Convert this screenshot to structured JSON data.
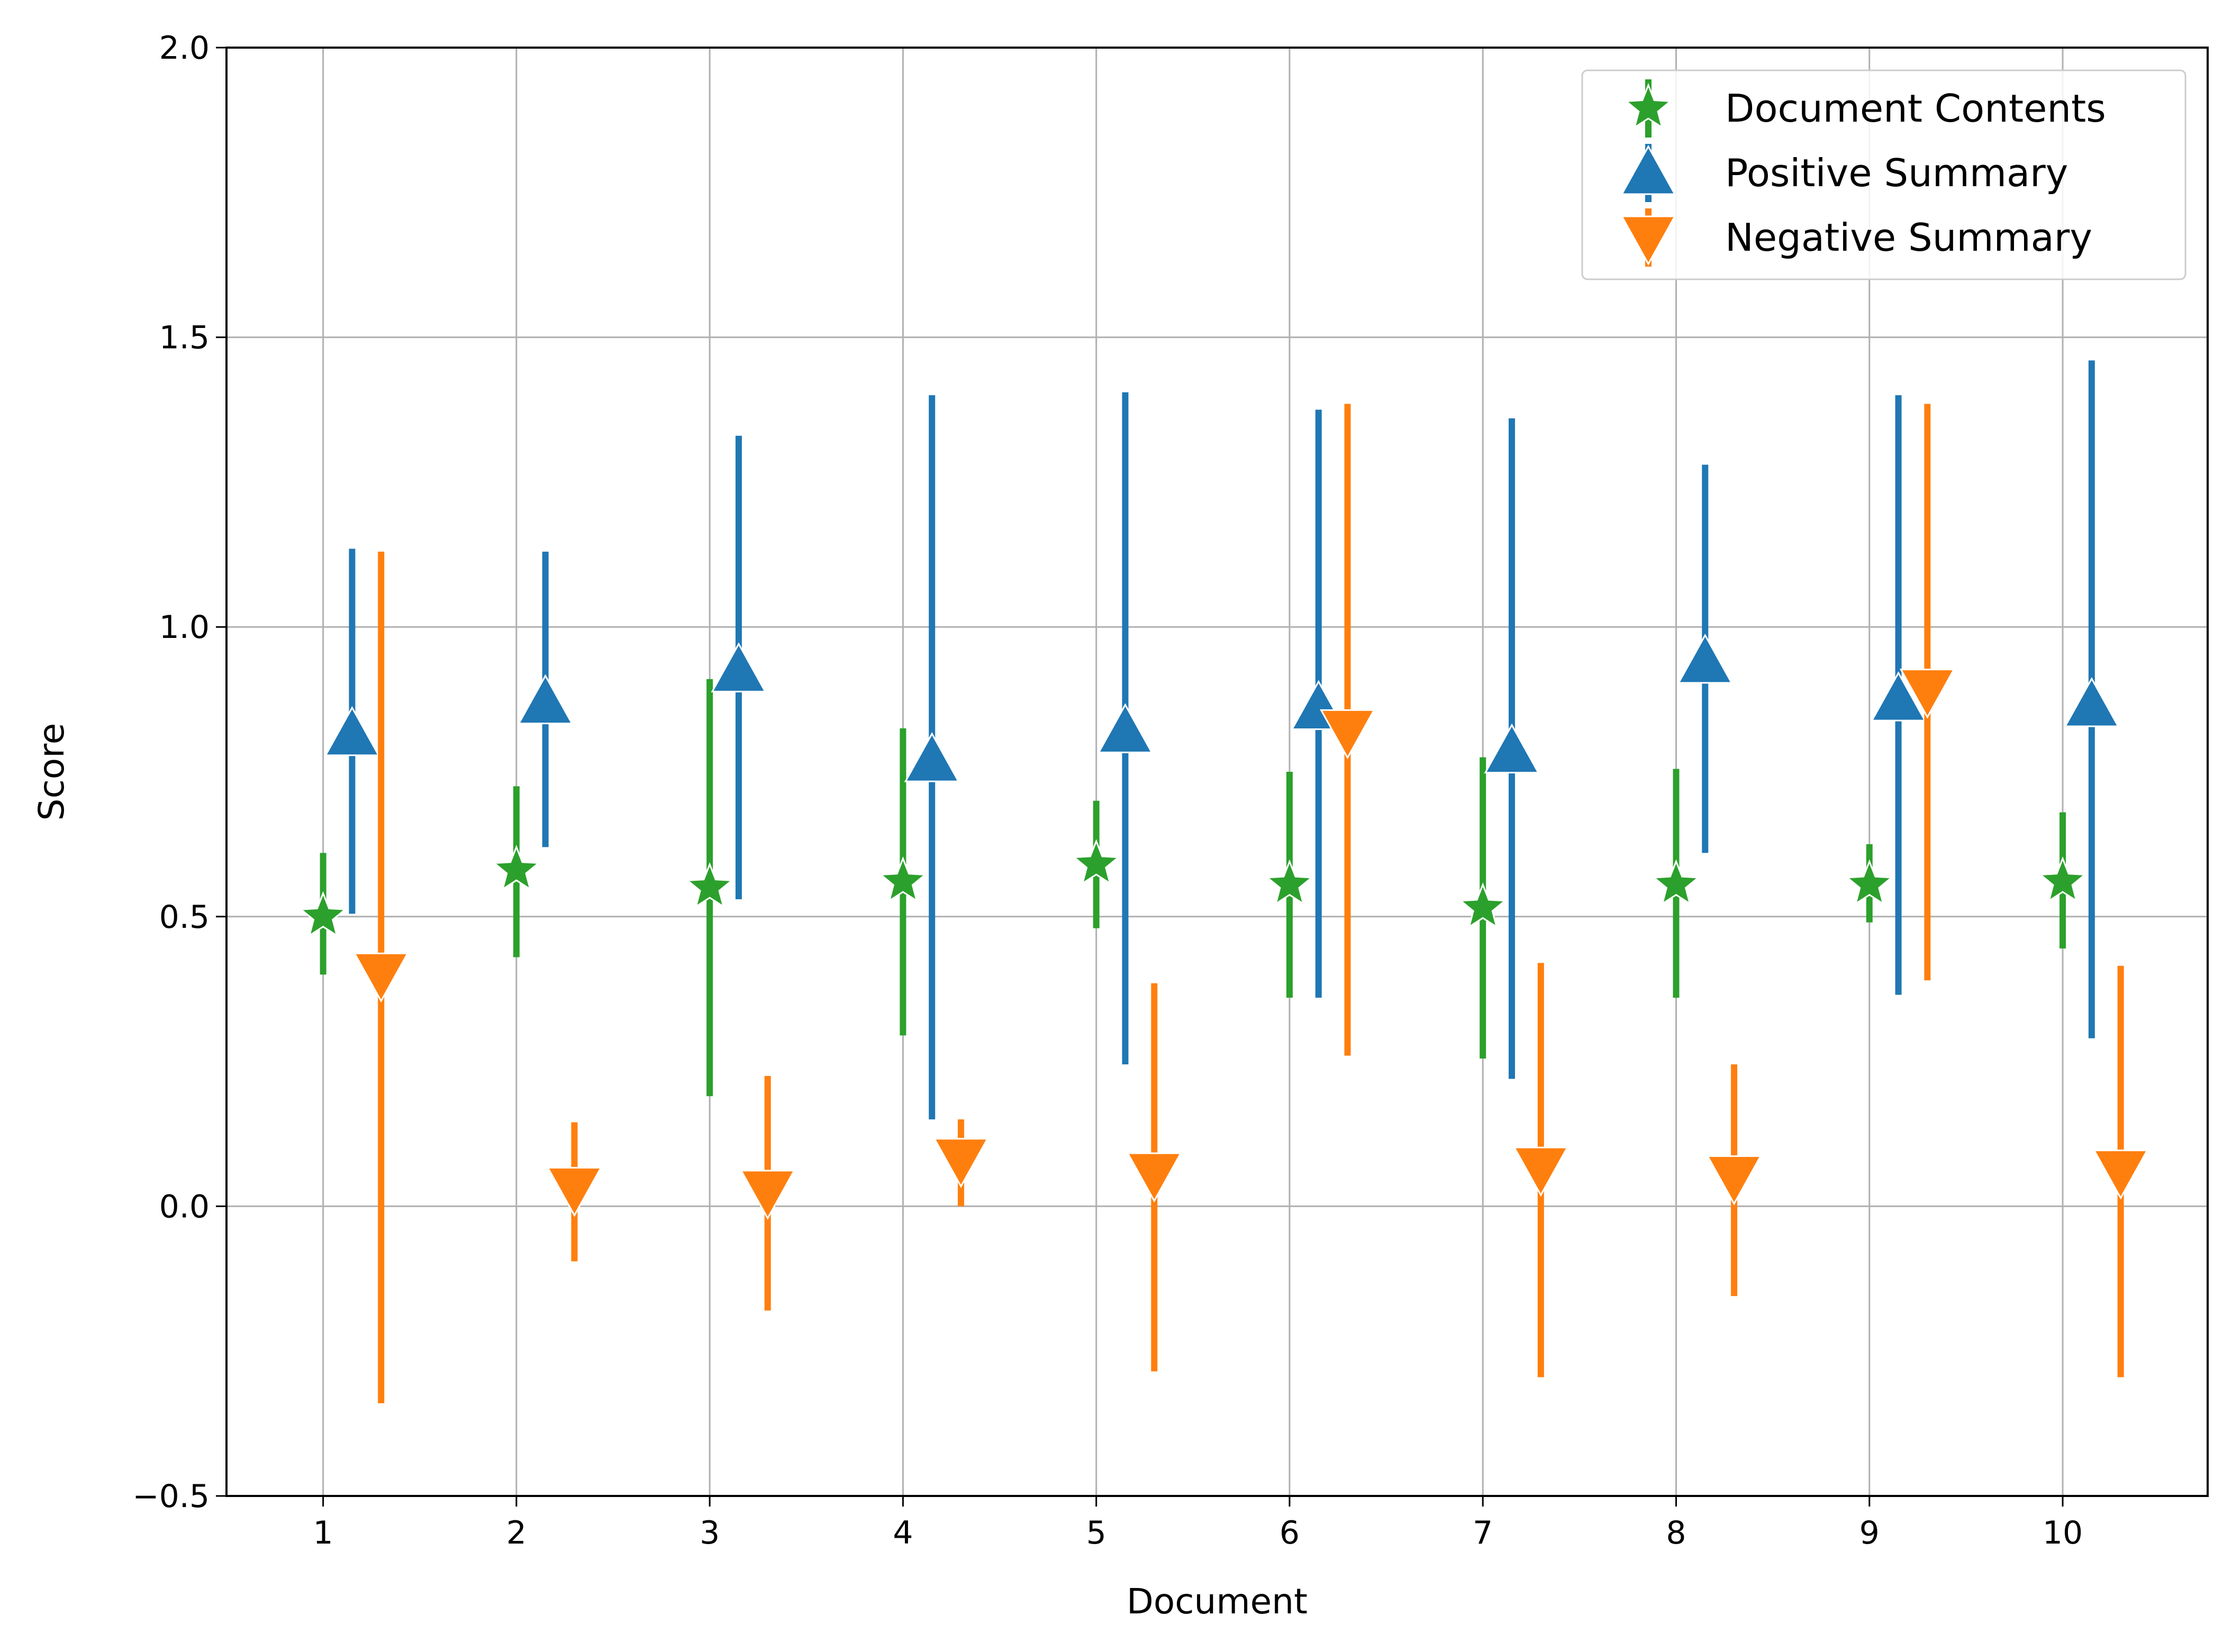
{
  "chart_data": {
    "type": "errorbar",
    "title": "",
    "xlabel": "Document",
    "ylabel": "Score",
    "xlim": [
      0.5,
      10.75
    ],
    "ylim": [
      -0.5,
      2.0
    ],
    "xticks": [
      1,
      2,
      3,
      4,
      5,
      6,
      7,
      8,
      9,
      10
    ],
    "xtick_labels": [
      "1",
      "2",
      "3",
      "4",
      "5",
      "6",
      "7",
      "8",
      "9",
      "10"
    ],
    "yticks": [
      -0.5,
      0.0,
      0.5,
      1.0,
      1.5,
      2.0
    ],
    "ytick_labels": [
      "−0.5",
      "0.0",
      "0.5",
      "1.0",
      "1.5",
      "2.0"
    ],
    "grid": true,
    "legend_position": "top-right",
    "series": [
      {
        "name": "Document Contents",
        "color": "#2ca02c",
        "marker": "star",
        "x_offset": 0.0,
        "x": [
          1,
          2,
          3,
          4,
          5,
          6,
          7,
          8,
          9,
          10
        ],
        "y": [
          0.5,
          0.58,
          0.55,
          0.56,
          0.59,
          0.555,
          0.515,
          0.555,
          0.555,
          0.56
        ],
        "yerr_low": [
          0.4,
          0.43,
          0.19,
          0.295,
          0.48,
          0.36,
          0.255,
          0.36,
          0.49,
          0.445
        ],
        "yerr_high": [
          0.61,
          0.725,
          0.91,
          0.825,
          0.7,
          0.75,
          0.775,
          0.755,
          0.625,
          0.68
        ]
      },
      {
        "name": "Positive Summary",
        "color": "#1f77b4",
        "marker": "triangle-up",
        "x_offset": 0.15,
        "x": [
          1,
          2,
          3,
          4,
          5,
          6,
          7,
          8,
          9,
          10
        ],
        "y": [
          0.815,
          0.87,
          0.925,
          0.77,
          0.82,
          0.86,
          0.785,
          0.94,
          0.875,
          0.865
        ],
        "yerr_low": [
          0.505,
          0.62,
          0.53,
          0.15,
          0.245,
          0.36,
          0.22,
          0.61,
          0.365,
          0.29
        ],
        "yerr_high": [
          1.135,
          1.13,
          1.33,
          1.4,
          1.405,
          1.375,
          1.36,
          1.28,
          1.4,
          1.46
        ]
      },
      {
        "name": "Negative Summary",
        "color": "#ff7f0e",
        "marker": "triangle-down",
        "x_offset": 0.3,
        "x": [
          1,
          2,
          3,
          4,
          5,
          6,
          7,
          8,
          9,
          10
        ],
        "y": [
          0.4,
          0.03,
          0.025,
          0.08,
          0.055,
          0.82,
          0.065,
          0.05,
          0.89,
          0.06
        ],
        "yerr_low": [
          -0.34,
          -0.095,
          -0.18,
          0.0,
          -0.285,
          0.26,
          -0.295,
          -0.155,
          0.39,
          -0.295
        ],
        "yerr_high": [
          1.13,
          0.145,
          0.225,
          0.15,
          0.385,
          1.385,
          0.42,
          0.245,
          1.385,
          0.415
        ]
      }
    ]
  }
}
